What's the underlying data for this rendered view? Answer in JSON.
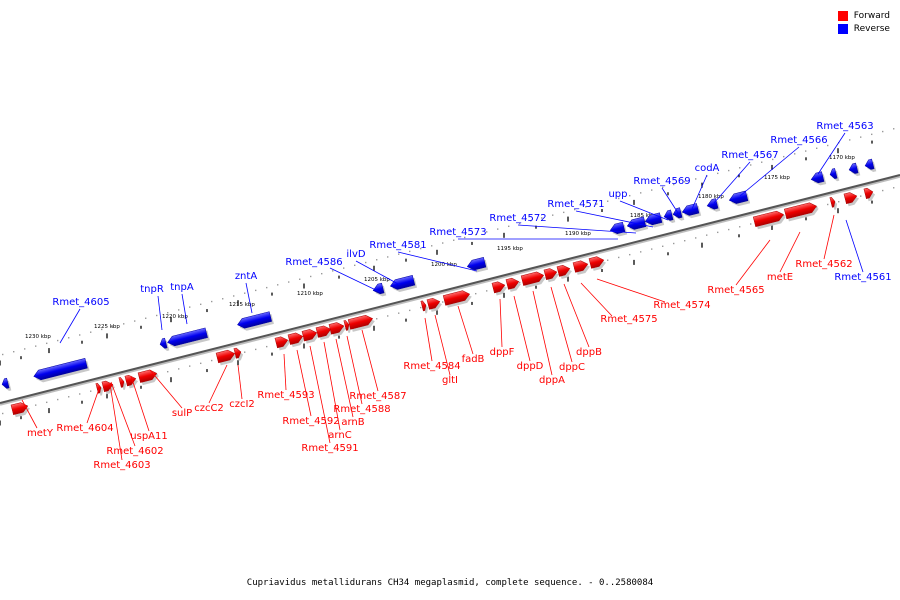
{
  "legend": {
    "forward_label": "Forward",
    "reverse_label": "Reverse",
    "forward_color": "#ff0000",
    "reverse_color": "#0000ff"
  },
  "caption": "Cupriavidus metallidurans CH34 megaplasmid, complete sequence. - 0..2580084",
  "colors": {
    "forward": "#ff0000",
    "reverse": "#0000ff",
    "backbone": "#555555"
  },
  "scale_labels": [
    "1230 kbp",
    "1225 kbp",
    "1220 kbp",
    "1215 kbp",
    "1210 kbp",
    "1205 kbp",
    "1200 kbp",
    "1195 kbp",
    "1190 kbp",
    "1185 kbp",
    "1180 kbp",
    "1175 kbp",
    "1170 kbp"
  ],
  "reverse_gene_labels": [
    "Rmet_4605",
    "tnpR",
    "tnpA",
    "zntA",
    "Rmet_4586",
    "ilvD",
    "Rmet_4581",
    "Rmet_4573",
    "Rmet_4572",
    "Rmet_4571",
    "upp",
    "Rmet_4569",
    "codA",
    "Rmet_4567",
    "Rmet_4566",
    "Rmet_4563",
    "Rmet_4561"
  ],
  "forward_gene_labels": [
    "metY",
    "Rmet_4604",
    "Rmet_4602",
    "Rmet_4603",
    "uspA11",
    "sulP",
    "czcC2",
    "czcI2",
    "Rmet_4593",
    "Rmet_4592",
    "Rmet_4591",
    "arnC",
    "arnB",
    "Rmet_4588",
    "Rmet_4587",
    "Rmet_4584",
    "gltI",
    "fadB",
    "dppF",
    "dppD",
    "dppA",
    "dppC",
    "dppB",
    "Rmet_4575",
    "Rmet_4574",
    "Rmet_4565",
    "metE",
    "Rmet_4562"
  ]
}
